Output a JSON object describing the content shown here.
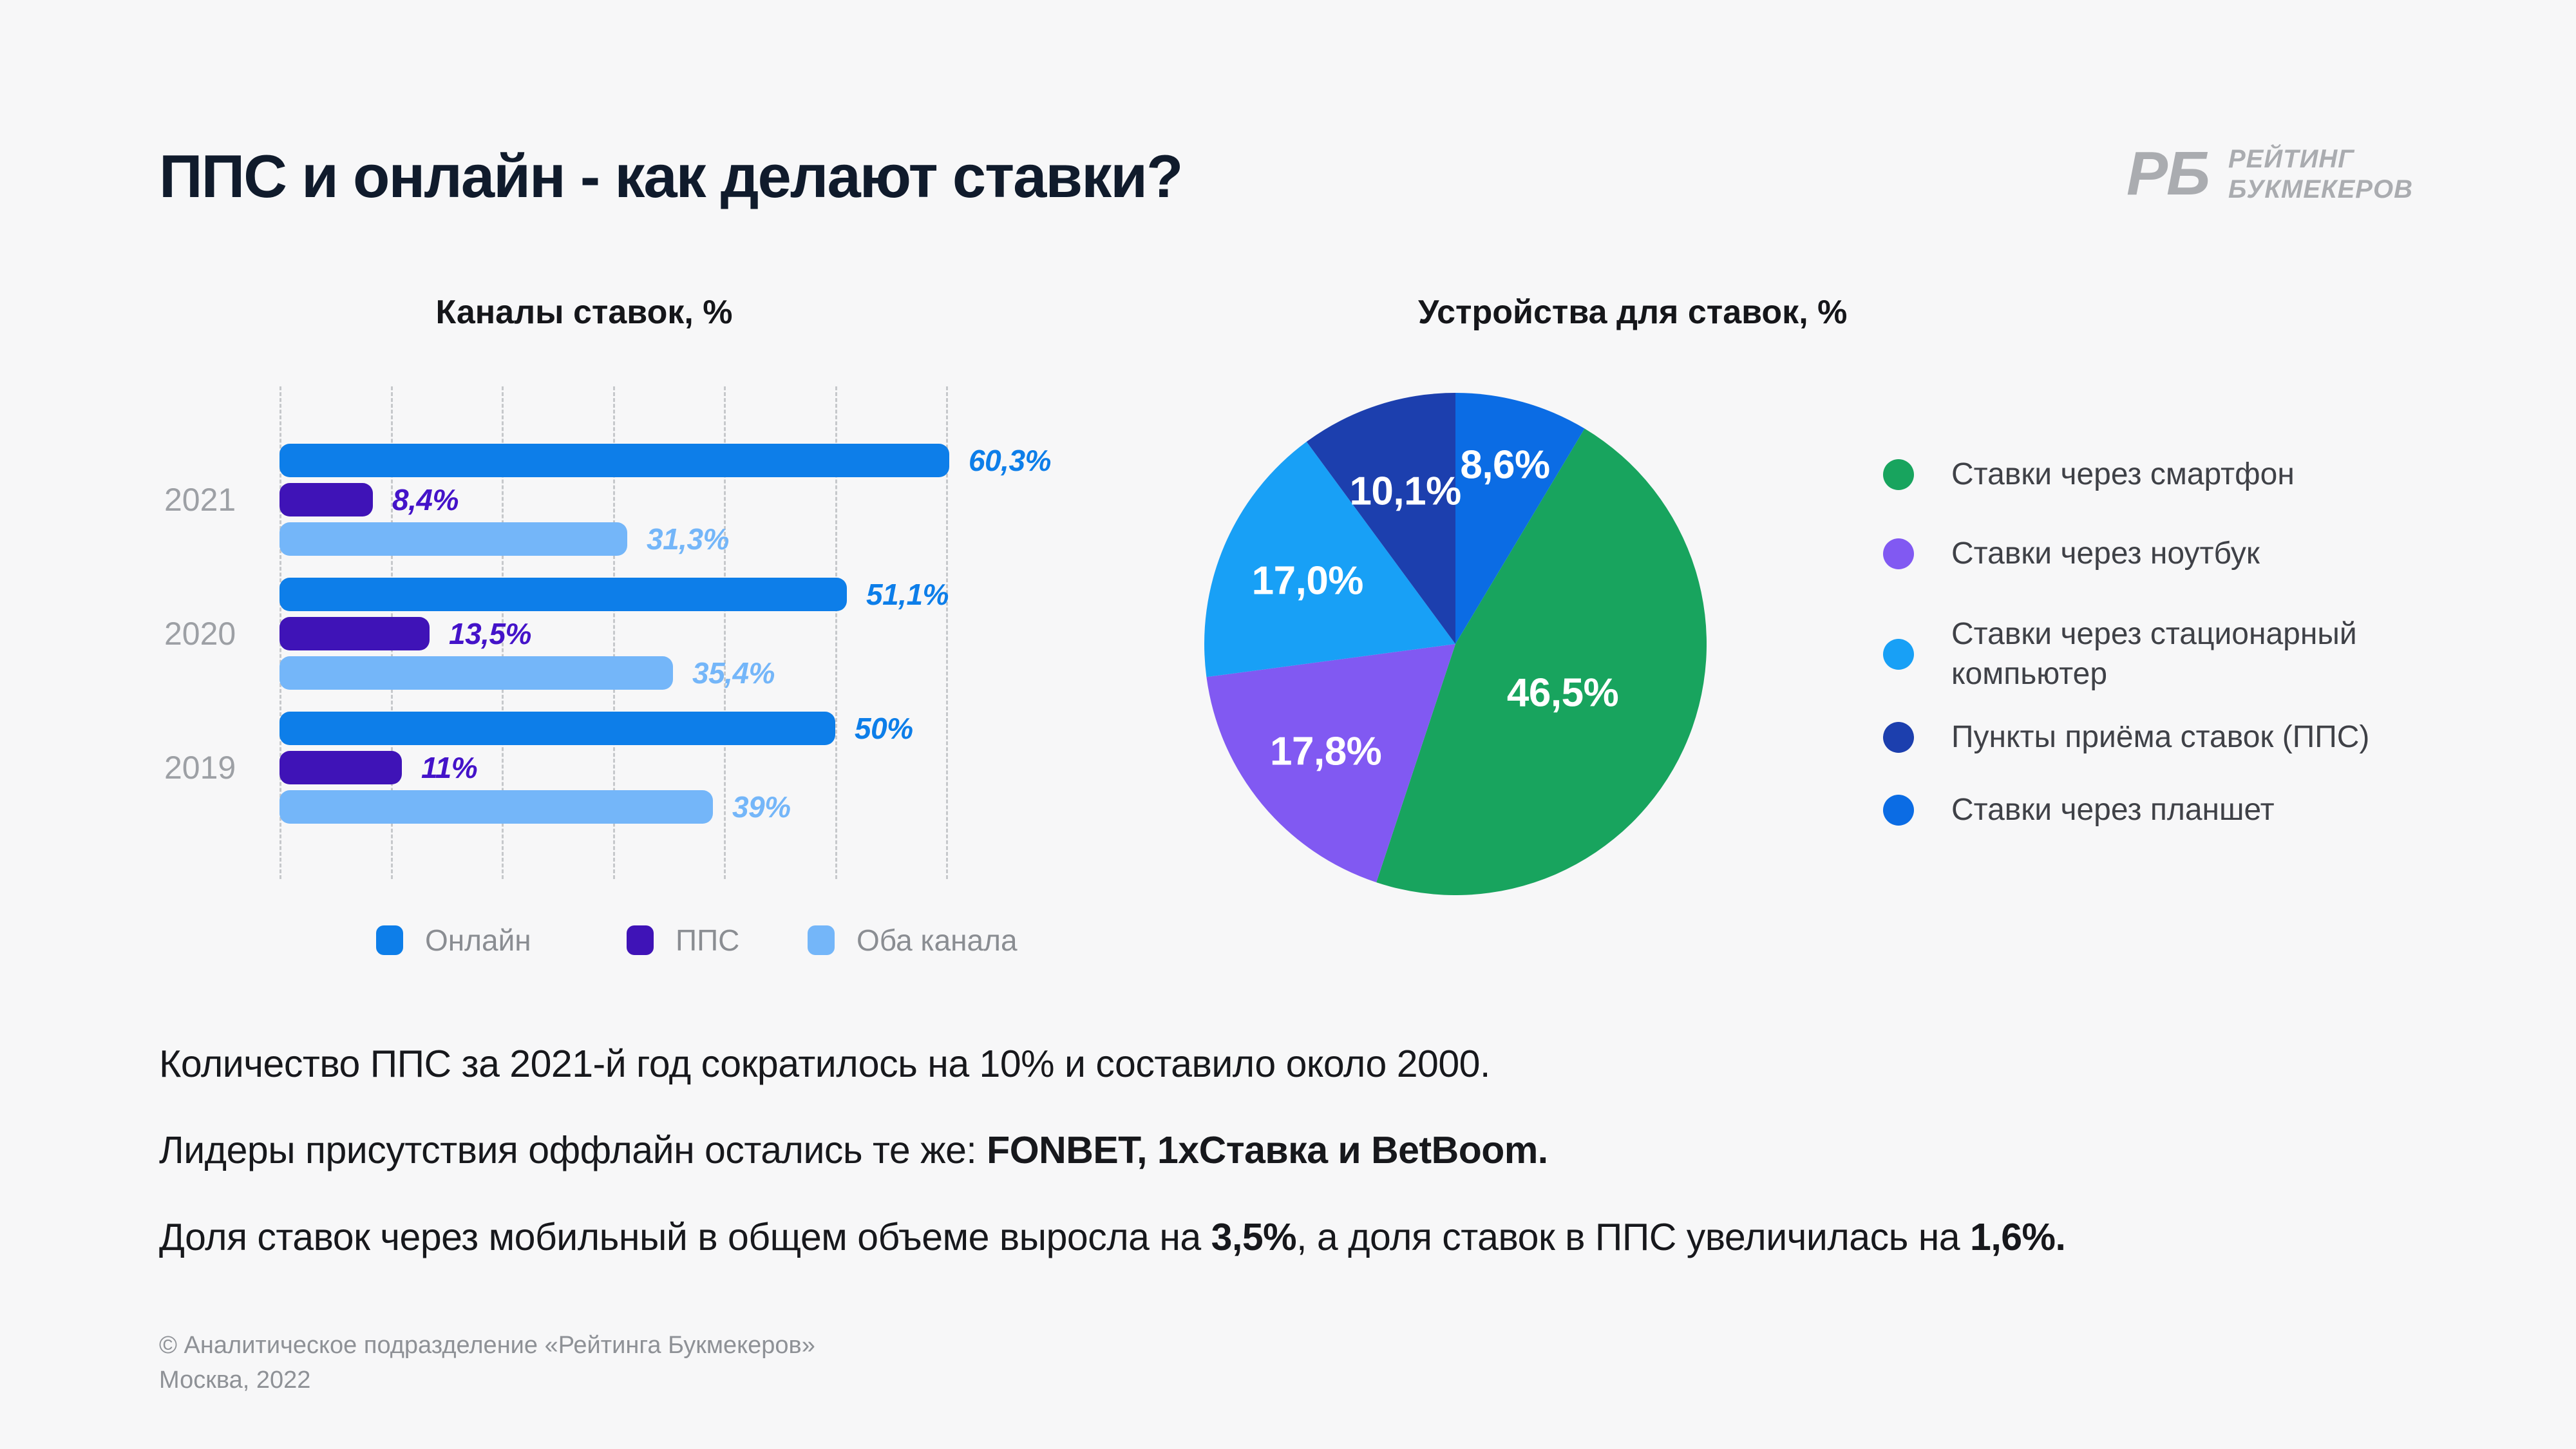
{
  "page": {
    "background": "#f7f7f8",
    "title": "ППС и онлайн - как делают ставки?"
  },
  "logo": {
    "mark": "РБ",
    "line1": "РЕЙТИНГ",
    "line2": "БУКМЕКЕРОВ",
    "color": "#aaacb0"
  },
  "chart_data": [
    {
      "type": "bar",
      "orientation": "horizontal",
      "title": "Каналы ставок, %",
      "categories": [
        "2021",
        "2020",
        "2019"
      ],
      "series": [
        {
          "key": "online",
          "name": "Онлайн",
          "color": "#0d7ee9",
          "label_color": "#0d7ee9",
          "values": [
            60.3,
            51.1,
            50
          ],
          "value_labels": [
            "60,3%",
            "51,1%",
            "50%"
          ]
        },
        {
          "key": "pps",
          "name": "ППС",
          "color": "#3f13b7",
          "label_color": "#4413c9",
          "values": [
            8.4,
            13.5,
            11
          ],
          "value_labels": [
            "8,4%",
            "13,5%",
            "11%"
          ]
        },
        {
          "key": "both",
          "name": "Оба канала",
          "color": "#74b6f9",
          "label_color": "#74b6f9",
          "values": [
            31.3,
            35.4,
            39
          ],
          "value_labels": [
            "31,3%",
            "35,4%",
            "39%"
          ]
        }
      ],
      "xlim": [
        0,
        60
      ],
      "grid_step": 10,
      "grid": true,
      "legend_position": "bottom"
    },
    {
      "type": "pie",
      "title": "Устройства для ставок, %",
      "start_angle_deg": 0,
      "direction": "clockwise",
      "slices": [
        {
          "key": "tablet",
          "label": "Ставки через планшет",
          "value": 8.6,
          "value_label": "8,6%",
          "color": "#0b6ce4",
          "label_r": 0.74
        },
        {
          "key": "smartphone",
          "label": "Ставки через смартфон",
          "value": 46.5,
          "value_label": "46,5%",
          "color": "#18a45e",
          "label_r": 0.47
        },
        {
          "key": "laptop",
          "label": "Ставки через ноутбук",
          "value": 17.8,
          "value_label": "17,8%",
          "color": "#8159f2",
          "label_r": 0.67
        },
        {
          "key": "desktop",
          "label": "Ставки через стационарный компьютер",
          "value": 17.0,
          "value_label": "17,0%",
          "color": "#18a0f6",
          "label_r": 0.64
        },
        {
          "key": "pps",
          "label": "Пункты приёма ставок (ППС)",
          "value": 10.1,
          "value_label": "10,1%",
          "color": "#1c3fae",
          "label_r": 0.64
        }
      ],
      "legend_order": [
        "smartphone",
        "laptop",
        "desktop",
        "pps",
        "tablet"
      ]
    }
  ],
  "notes": [
    [
      {
        "text": "Количество ППС за 2021-й год сократилось на 10% и составило около 2000.",
        "bold": false
      }
    ],
    [
      {
        "text": "Лидеры присутствия оффлайн остались те же: ",
        "bold": false
      },
      {
        "text": "FONBET, 1хСтавка и BetBoom.",
        "bold": true
      }
    ],
    [
      {
        "text": "Доля ставок через мобильный в общем объеме выросла на ",
        "bold": false
      },
      {
        "text": "3,5%",
        "bold": true
      },
      {
        "text": ", а доля ставок в ППС увеличилась на ",
        "bold": false
      },
      {
        "text": "1,6%.",
        "bold": true
      }
    ]
  ],
  "footer": {
    "line1": "© Аналитическое подразделение «Рейтинга Букмекеров»",
    "line2": "Москва, 2022"
  }
}
